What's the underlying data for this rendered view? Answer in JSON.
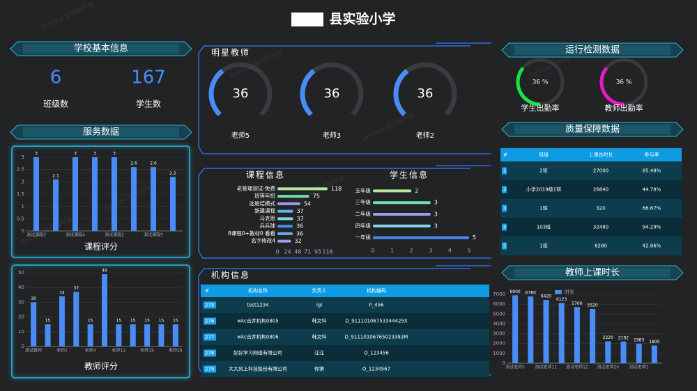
{
  "title": "县实验小学",
  "watermark": "GoView 低代码平台",
  "school_info": {
    "title": "学校基本信息",
    "stats": [
      {
        "value": 6,
        "label": "班级数"
      },
      {
        "value": 167,
        "label": "学生数"
      }
    ]
  },
  "service": {
    "title": "服务数据"
  },
  "course_rating": {
    "type": "bar",
    "title": "课程评分",
    "color": "#4a8cf7",
    "categories": [
      "测试课程3",
      null,
      "测试课程4",
      null,
      "测试课程2",
      null,
      "测试课程5",
      null
    ],
    "values": [
      3,
      2.1,
      3,
      3,
      3,
      2.6,
      2.6,
      2.2
    ],
    "ylim": [
      0,
      3
    ],
    "yticks": [
      0,
      0.5,
      1,
      1.5,
      2,
      2.5,
      3
    ]
  },
  "teacher_rating": {
    "type": "bar",
    "title": "教师评分",
    "color": "#4a8cf7",
    "categories": [
      "测试教师",
      null,
      "老师2",
      null,
      "老师4",
      null,
      "老师12",
      null,
      "老师19",
      null,
      "老师26"
    ],
    "values": [
      30,
      15,
      34,
      37,
      15,
      49,
      15,
      15,
      15,
      15,
      15
    ],
    "ylim": [
      0,
      50
    ],
    "yticks": [
      0,
      10,
      20,
      30,
      40,
      50
    ]
  },
  "star_teachers": {
    "type": "gauge",
    "title": "明星教师",
    "ylim": [
      0,
      100
    ],
    "color": "#4a8cf7",
    "items": [
      {
        "value": 36,
        "label": "老师5"
      },
      {
        "value": 36,
        "label": "老师3"
      },
      {
        "value": 36,
        "label": "老师2"
      }
    ]
  },
  "course_info": {
    "type": "hbar",
    "title": "课程信息",
    "categories": [
      "老管理测试-免费",
      "班等年招",
      "这是结模式",
      "新建课程",
      "马克思",
      "兵兵球",
      "8课程0+教材0 看看",
      "名字修改4"
    ],
    "values": [
      118,
      75,
      54,
      37,
      37,
      36,
      36,
      32
    ],
    "colors": [
      "#b5e8a0",
      "#6fe0b0",
      "#9a9ef0",
      "#5fb4f0",
      "#7fd6e8",
      "#4a8cf7",
      "#5fb4f0",
      "#9a9ef0"
    ],
    "xlim": [
      0,
      118
    ],
    "xticks": [
      0,
      24,
      48,
      71,
      95,
      118
    ]
  },
  "student_info": {
    "type": "hbar",
    "title": "学生信息",
    "categories": [
      "五年级",
      "三年级",
      "二年级",
      "四年级",
      "一年级"
    ],
    "values": [
      2,
      3,
      3,
      3,
      5
    ],
    "colors": [
      "#b5e8a0",
      "#6fe0b0",
      "#9a9ef0",
      "#7fd6e8",
      "#4a8cf7"
    ],
    "xlim": [
      0,
      5
    ],
    "xticks": [
      0,
      1,
      2,
      3,
      4,
      5
    ]
  },
  "institutions": {
    "title": "机构信息",
    "columns": [
      "#",
      "机构名称",
      "负责人",
      "机构编码"
    ],
    "rows": [
      [
        275,
        "test1234",
        "lgl",
        "P_456"
      ],
      [
        276,
        "wkc合并机构0805",
        "韩文科",
        "D_91110106753344425X"
      ],
      [
        277,
        "wkc合并机构0806",
        "韩文科",
        "D_91110106765023383M"
      ],
      [
        278,
        "好好学习网络有限公司",
        "汪汪",
        "O_123456"
      ],
      [
        279,
        "大大风上科技股份有限公司",
        "你猜",
        "O_1234567"
      ]
    ]
  },
  "monitor": {
    "type": "ring",
    "title": "运行检测数据",
    "ylim": [
      0,
      100
    ],
    "items": [
      {
        "value": 36,
        "value_label": "36 %",
        "label": "学生出勤率",
        "color": "#19e34a"
      },
      {
        "value": 36,
        "value_label": "36 %",
        "label": "教师出勤率",
        "color": "#e619c8"
      }
    ]
  },
  "quality": {
    "title": "质量保障数据",
    "columns": [
      "#",
      "班级",
      "上课总时长",
      "参与率"
    ],
    "rows": [
      [
        1,
        "2班",
        27000,
        "85.48%"
      ],
      [
        2,
        "小学2019级1班",
        26840,
        "44.78%"
      ],
      [
        3,
        "1班",
        320,
        "66.67%"
      ],
      [
        4,
        "103班",
        32480,
        "94.29%"
      ],
      [
        5,
        "1班",
        8280,
        "42.86%"
      ]
    ]
  },
  "teaching_hours": {
    "type": "bar",
    "title": "教师上课时长",
    "categories": [
      "测试老师5",
      null,
      "测试老师11",
      null,
      "测试老师12",
      null,
      "测试老师20",
      null,
      "测试老师1",
      null
    ],
    "series": [
      {
        "name": "时长",
        "color": "#4a8cf7",
        "values": [
          6900,
          6780,
          6420,
          6123,
          5700,
          5520,
          2220,
          2192,
          1983,
          1800
        ]
      }
    ],
    "ylim": [
      0,
      7000
    ],
    "yticks": [
      0,
      1000,
      2000,
      3000,
      4000,
      5000,
      6000,
      7000
    ]
  }
}
